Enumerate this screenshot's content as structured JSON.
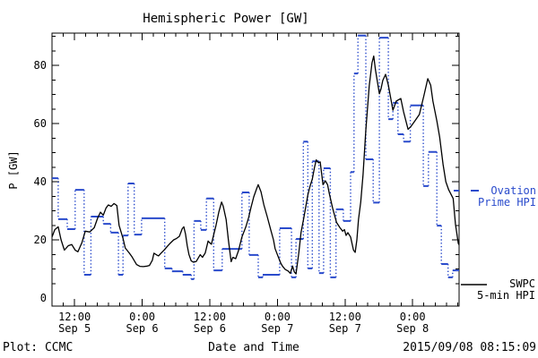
{
  "annotations": {
    "credit": "Plot: CCMC",
    "timestamp": "2015/09/08 08:15:09"
  },
  "legend": {
    "ovation": {
      "line1": "Ovation",
      "line2": "Prime HPI"
    },
    "swpc": {
      "line1": "SWPC",
      "line2": "5-min HPI"
    }
  },
  "colors": {
    "ovation_blue": "#2a4bcc",
    "swpc_black": "#000000",
    "background": "#ffffff"
  },
  "chart_data": {
    "type": "line",
    "title": "Hemispheric Power [GW]",
    "xlabel": "Date and Time",
    "ylabel": "P [GW]",
    "grid": false,
    "legend_position": "right-outside",
    "x_axis": {
      "range_hours": [
        0,
        72.25
      ],
      "minor_tick_hours": 2,
      "major_ticks": [
        {
          "t": 4,
          "time": "12:00",
          "date": "Sep 5"
        },
        {
          "t": 16,
          "time": "0:00",
          "date": "Sep 6"
        },
        {
          "t": 28,
          "time": "12:00",
          "date": "Sep 6"
        },
        {
          "t": 40,
          "time": "0:00",
          "date": "Sep 7"
        },
        {
          "t": 52,
          "time": "12:00",
          "date": "Sep 7"
        },
        {
          "t": 64,
          "time": "0:00",
          "date": "Sep 8"
        }
      ]
    },
    "y_axis": {
      "range": [
        -2.8,
        91.1
      ],
      "major_step": 20,
      "minor_step": 5,
      "ticks": [
        {
          "v": 0,
          "label": "0"
        },
        {
          "v": 20,
          "label": "20"
        },
        {
          "v": 40,
          "label": "40"
        },
        {
          "v": 60,
          "label": "60"
        },
        {
          "v": 80,
          "label": "80"
        }
      ]
    },
    "series": [
      {
        "name": "SWPC 5-min HPI",
        "style": "solid-line",
        "color": "#000000",
        "points": [
          [
            0,
            21
          ],
          [
            0.5,
            23.5
          ],
          [
            1.1,
            24.5
          ],
          [
            1.6,
            20
          ],
          [
            2.2,
            16.5
          ],
          [
            2.9,
            18
          ],
          [
            3.5,
            18.4
          ],
          [
            4.1,
            16.5
          ],
          [
            4.6,
            15.9
          ],
          [
            5.3,
            19
          ],
          [
            5.9,
            23
          ],
          [
            6.7,
            22.7
          ],
          [
            7.5,
            24.2
          ],
          [
            8.1,
            27.5
          ],
          [
            8.6,
            29.5
          ],
          [
            9.1,
            28.5
          ],
          [
            9.6,
            31
          ],
          [
            10,
            32
          ],
          [
            10.5,
            31.5
          ],
          [
            11,
            32.5
          ],
          [
            11.5,
            31.8
          ],
          [
            11.9,
            25
          ],
          [
            12.6,
            20.5
          ],
          [
            13,
            17.2
          ],
          [
            13.7,
            15.5
          ],
          [
            14.2,
            14.2
          ],
          [
            15,
            11.5
          ],
          [
            15.6,
            10.9
          ],
          [
            16.2,
            10.8
          ],
          [
            16.9,
            11
          ],
          [
            17.3,
            11.2
          ],
          [
            17.8,
            13
          ],
          [
            18.1,
            15.4
          ],
          [
            18.6,
            14.8
          ],
          [
            18.9,
            14.5
          ],
          [
            19.4,
            15.5
          ],
          [
            19.9,
            16.5
          ],
          [
            20.5,
            17.8
          ],
          [
            21,
            18.9
          ],
          [
            21.6,
            20
          ],
          [
            22.1,
            20.5
          ],
          [
            22.6,
            21.2
          ],
          [
            23.1,
            23.8
          ],
          [
            23.4,
            24.5
          ],
          [
            23.7,
            22
          ],
          [
            24,
            18
          ],
          [
            24.3,
            15
          ],
          [
            24.7,
            12.8
          ],
          [
            25.1,
            12.3
          ],
          [
            25.6,
            12.6
          ],
          [
            26.3,
            14.9
          ],
          [
            26.7,
            14
          ],
          [
            27.2,
            15.5
          ],
          [
            27.7,
            19.6
          ],
          [
            28,
            19
          ],
          [
            28.3,
            18.5
          ],
          [
            28.6,
            21
          ],
          [
            29.1,
            25
          ],
          [
            29.6,
            29.5
          ],
          [
            30.1,
            33
          ],
          [
            30.4,
            31.5
          ],
          [
            30.9,
            27
          ],
          [
            31.3,
            20
          ],
          [
            31.8,
            12.5
          ],
          [
            32.1,
            14
          ],
          [
            32.6,
            13.5
          ],
          [
            33.1,
            16.3
          ],
          [
            33.7,
            21
          ],
          [
            34.4,
            24.5
          ],
          [
            34.9,
            27.7
          ],
          [
            35.3,
            31
          ],
          [
            35.8,
            34.8
          ],
          [
            36.3,
            37.5
          ],
          [
            36.6,
            39
          ],
          [
            37.1,
            36.5
          ],
          [
            37.6,
            32
          ],
          [
            38.2,
            28
          ],
          [
            38.8,
            23.6
          ],
          [
            39.3,
            20
          ],
          [
            39.6,
            17
          ],
          [
            40.1,
            14.4
          ],
          [
            40.6,
            12
          ],
          [
            40.9,
            11
          ],
          [
            41.4,
            9.8
          ],
          [
            41.9,
            9.3
          ],
          [
            42.3,
            8.5
          ],
          [
            42.7,
            11
          ],
          [
            43,
            9
          ],
          [
            43.3,
            8.3
          ],
          [
            43.8,
            15.4
          ],
          [
            44.2,
            22.5
          ],
          [
            44.7,
            27.7
          ],
          [
            45.4,
            35.4
          ],
          [
            45.8,
            38.5
          ],
          [
            46.2,
            40.9
          ],
          [
            46.6,
            45
          ],
          [
            46.9,
            47.5
          ],
          [
            47.3,
            46.5
          ],
          [
            47.6,
            46.8
          ],
          [
            48.1,
            39
          ],
          [
            48.5,
            40.3
          ],
          [
            48.9,
            39
          ],
          [
            49.2,
            36
          ],
          [
            49.8,
            31
          ],
          [
            50.5,
            26
          ],
          [
            51.1,
            24.2
          ],
          [
            51.6,
            23
          ],
          [
            51.9,
            23.5
          ],
          [
            52.2,
            21.5
          ],
          [
            52.5,
            22.5
          ],
          [
            53,
            21
          ],
          [
            53.5,
            16.5
          ],
          [
            53.8,
            15.7
          ],
          [
            54.1,
            20
          ],
          [
            54.4,
            27
          ],
          [
            54.8,
            33
          ],
          [
            55.2,
            42.5
          ],
          [
            55.7,
            57.8
          ],
          [
            56.3,
            73
          ],
          [
            56.8,
            80.9
          ],
          [
            57.1,
            83.2
          ],
          [
            57.4,
            78.5
          ],
          [
            58.1,
            70.2
          ],
          [
            58.4,
            72
          ],
          [
            58.7,
            74.8
          ],
          [
            59.2,
            76.9
          ],
          [
            59.7,
            73.2
          ],
          [
            60.5,
            64.6
          ],
          [
            61.1,
            67.7
          ],
          [
            61.9,
            68.6
          ],
          [
            62.4,
            64
          ],
          [
            63.2,
            58
          ],
          [
            63.7,
            59
          ],
          [
            64.4,
            60.9
          ],
          [
            65.2,
            63.1
          ],
          [
            66,
            69.5
          ],
          [
            66.7,
            75.4
          ],
          [
            67.2,
            73.2
          ],
          [
            67.6,
            67.7
          ],
          [
            68.3,
            60.9
          ],
          [
            68.8,
            55.4
          ],
          [
            69.4,
            46
          ],
          [
            69.9,
            40
          ],
          [
            70.4,
            37.2
          ],
          [
            71.2,
            34.2
          ],
          [
            71.6,
            25.5
          ],
          [
            72.1,
            18.8
          ],
          [
            72.25,
            18.3
          ]
        ]
      },
      {
        "name": "Ovation Prime HPI",
        "style": "step-dotted",
        "color": "#2a4bcc",
        "end_t": 72.25,
        "points": [
          [
            0,
            41.2
          ],
          [
            1.1,
            27.1
          ],
          [
            2.7,
            23.7
          ],
          [
            4.1,
            37.2
          ],
          [
            5.7,
            8
          ],
          [
            6.9,
            28
          ],
          [
            9.1,
            25.5
          ],
          [
            10.4,
            22.5
          ],
          [
            11.8,
            8
          ],
          [
            12.6,
            21.5
          ],
          [
            13.5,
            39.4
          ],
          [
            14.6,
            21.8
          ],
          [
            15.9,
            27.4
          ],
          [
            20,
            10.2
          ],
          [
            21.3,
            9.2
          ],
          [
            23.2,
            8
          ],
          [
            24.7,
            6.5
          ],
          [
            25.2,
            26.5
          ],
          [
            26.4,
            23.4
          ],
          [
            27.4,
            34.2
          ],
          [
            28.7,
            9.5
          ],
          [
            30.2,
            16.9
          ],
          [
            33.7,
            36.3
          ],
          [
            35,
            14.8
          ],
          [
            36.6,
            7.1
          ],
          [
            37.4,
            8
          ],
          [
            40.4,
            24
          ],
          [
            42.5,
            7.1
          ],
          [
            43.3,
            20.3
          ],
          [
            44.6,
            53.8
          ],
          [
            45.4,
            10.2
          ],
          [
            46.2,
            47
          ],
          [
            47.4,
            8.6
          ],
          [
            48.2,
            44.6
          ],
          [
            49.4,
            7.1
          ],
          [
            50.4,
            30.5
          ],
          [
            51.7,
            26.5
          ],
          [
            53,
            43.3
          ],
          [
            53.6,
            77.2
          ],
          [
            54.3,
            90.2
          ],
          [
            55.7,
            47.7
          ],
          [
            57,
            32.8
          ],
          [
            58.1,
            89.5
          ],
          [
            59.7,
            61.5
          ],
          [
            60.5,
            67.1
          ],
          [
            61.4,
            56.3
          ],
          [
            62.4,
            53.8
          ],
          [
            63.6,
            66.2
          ],
          [
            65.9,
            38.5
          ],
          [
            66.8,
            50.2
          ],
          [
            68.3,
            24.9
          ],
          [
            69.1,
            11.7
          ],
          [
            70.3,
            7.1
          ],
          [
            71.1,
            9.5
          ]
        ]
      }
    ]
  }
}
